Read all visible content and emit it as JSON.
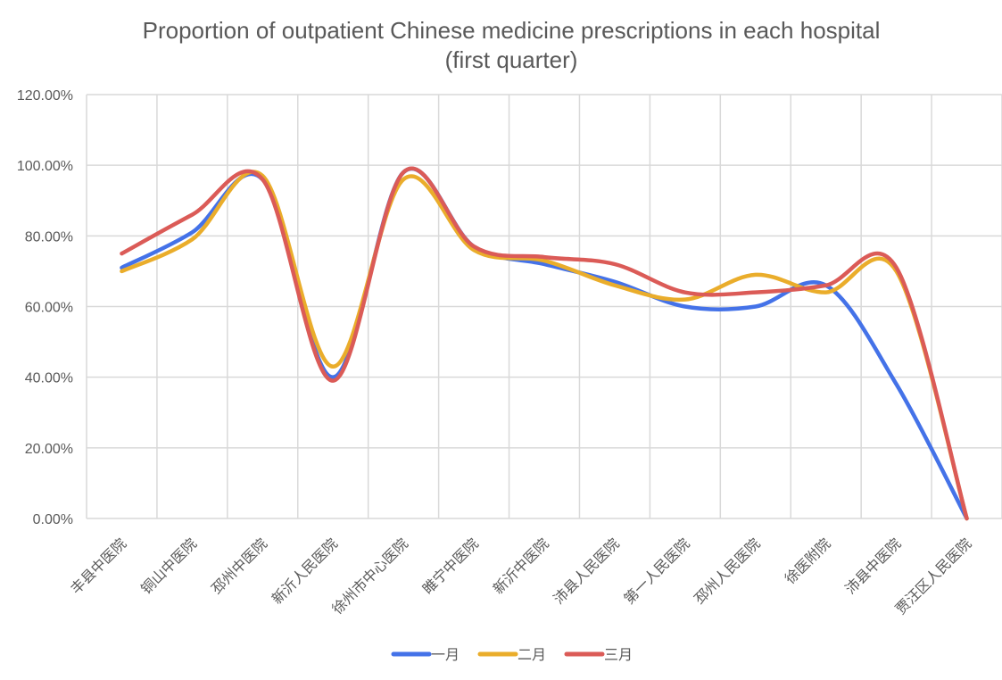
{
  "chart_data": {
    "type": "line",
    "smooth": true,
    "title_lines": [
      "Proportion of outpatient Chinese medicine prescriptions in each hospital",
      "(first quarter)"
    ],
    "xlabel": "",
    "ylabel": "",
    "categories": [
      "丰县中医院",
      "铜山中医院",
      "邳州中医院",
      "新沂人民医院",
      "徐州市中心医院",
      "睢宁中医院",
      "新沂中医院",
      "沛县人民医院",
      "第一人民医院",
      "邳州人民医院",
      "徐医附院",
      "沛县中医院",
      "贾汪区人民医院"
    ],
    "ylim": [
      0,
      1.2
    ],
    "ytick_values": [
      0,
      0.2,
      0.4,
      0.6,
      0.8,
      1.0,
      1.2
    ],
    "ytick_labels": [
      "0.00%",
      "20.00%",
      "40.00%",
      "60.00%",
      "80.00%",
      "100.00%",
      "120.00%"
    ],
    "grid": true,
    "legend_position": "bottom",
    "series": [
      {
        "name": "一月",
        "color": "#4472e8",
        "values": [
          0.71,
          0.81,
          0.96,
          0.4,
          0.98,
          0.77,
          0.72,
          0.67,
          0.6,
          0.6,
          0.66,
          0.38,
          0.0
        ]
      },
      {
        "name": "二月",
        "color": "#eaad2b",
        "values": [
          0.7,
          0.79,
          0.97,
          0.43,
          0.96,
          0.76,
          0.73,
          0.66,
          0.62,
          0.69,
          0.64,
          0.7,
          0.0
        ]
      },
      {
        "name": "三月",
        "color": "#db5b57",
        "values": [
          0.75,
          0.86,
          0.96,
          0.39,
          0.98,
          0.77,
          0.74,
          0.72,
          0.64,
          0.64,
          0.66,
          0.71,
          0.0
        ]
      }
    ]
  }
}
